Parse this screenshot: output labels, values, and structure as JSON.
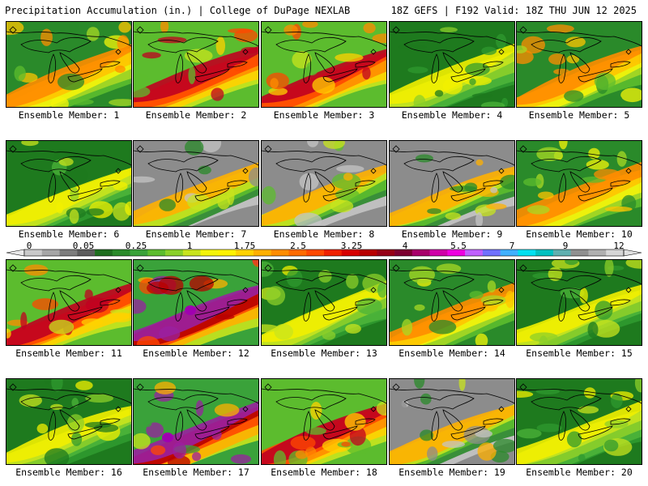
{
  "header": {
    "left": "Precipitation Accumulation (in.) | College of DuPage NEXLAB",
    "right": "18Z GEFS | F192 Valid: 18Z THU JUN 12 2025"
  },
  "colorbar": {
    "labels": [
      "0",
      "0.05",
      "0.25",
      "1",
      "1.75",
      "2.5",
      "3.25",
      "4",
      "5.5",
      "7",
      "9",
      "12"
    ],
    "colors": [
      "#c9c9c9",
      "#a6a6a6",
      "#7d7d7d",
      "#5c5c5c",
      "#1e6e1e",
      "#2a8a2a",
      "#3aa23a",
      "#5cbc2e",
      "#8ad02a",
      "#c8e41e",
      "#f4f40a",
      "#fff200",
      "#ffd200",
      "#ffb000",
      "#ff8c00",
      "#ff6a00",
      "#ff4800",
      "#f02000",
      "#d80000",
      "#b80000",
      "#960016",
      "#7c0030",
      "#a8006a",
      "#d000a8",
      "#ee00e0",
      "#c060ff",
      "#7070ff",
      "#40b0ff",
      "#00e0f0",
      "#00c0c0",
      "#60b0b0",
      "#909090",
      "#b0b0b0",
      "#d6d6d6"
    ]
  },
  "panels": [
    {
      "caption": "Ensemble Member: 1",
      "scheme": "mixed"
    },
    {
      "caption": "Ensemble Member: 2",
      "scheme": "hot"
    },
    {
      "caption": "Ensemble Member: 3",
      "scheme": "hot"
    },
    {
      "caption": "Ensemble Member: 4",
      "scheme": "green"
    },
    {
      "caption": "Ensemble Member: 5",
      "scheme": "mixed"
    },
    {
      "caption": "Ensemble Member: 6",
      "scheme": "green"
    },
    {
      "caption": "Ensemble Member: 7",
      "scheme": "grey"
    },
    {
      "caption": "Ensemble Member: 8",
      "scheme": "grey"
    },
    {
      "caption": "Ensemble Member: 9",
      "scheme": "grey"
    },
    {
      "caption": "Ensemble Member: 10",
      "scheme": "mixed"
    },
    {
      "caption": "Ensemble Member: 11",
      "scheme": "hot"
    },
    {
      "caption": "Ensemble Member: 12",
      "scheme": "purple"
    },
    {
      "caption": "Ensemble Member: 13",
      "scheme": "green"
    },
    {
      "caption": "Ensemble Member: 14",
      "scheme": "mixed"
    },
    {
      "caption": "Ensemble Member: 15",
      "scheme": "green"
    },
    {
      "caption": "Ensemble Member: 16",
      "scheme": "green"
    },
    {
      "caption": "Ensemble Member: 17",
      "scheme": "purple"
    },
    {
      "caption": "Ensemble Member: 18",
      "scheme": "hot"
    },
    {
      "caption": "Ensemble Member: 19",
      "scheme": "grey"
    },
    {
      "caption": "Ensemble Member: 20",
      "scheme": "green"
    }
  ]
}
